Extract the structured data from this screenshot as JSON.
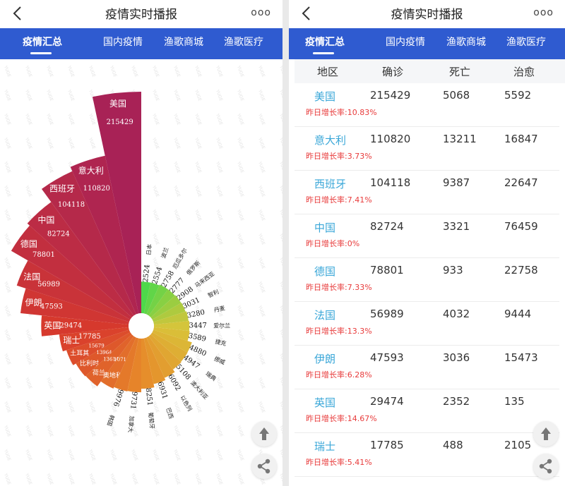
{
  "header": {
    "title": "疫情实时播报",
    "more_icon": "ooo"
  },
  "tabs": [
    {
      "label": "疫情汇总",
      "active": true
    },
    {
      "label": "国内疫情",
      "active": false
    },
    {
      "label": "渔歌商城",
      "active": false
    },
    {
      "label": "渔歌医疗",
      "active": false
    }
  ],
  "table": {
    "headers": [
      "地区",
      "确诊",
      "死亡",
      "治愈"
    ],
    "growth_label": "昨日增长率:",
    "rows": [
      {
        "country": "美国",
        "confirmed": "215429",
        "deaths": "5068",
        "recovered": "5592",
        "growth": "10.83%"
      },
      {
        "country": "意大利",
        "confirmed": "110820",
        "deaths": "13211",
        "recovered": "16847",
        "growth": "3.73%"
      },
      {
        "country": "西班牙",
        "confirmed": "104118",
        "deaths": "9387",
        "recovered": "22647",
        "growth": "7.41%"
      },
      {
        "country": "中国",
        "confirmed": "82724",
        "deaths": "3321",
        "recovered": "76459",
        "growth": "0%"
      },
      {
        "country": "德国",
        "confirmed": "78801",
        "deaths": "933",
        "recovered": "22758",
        "growth": "7.33%"
      },
      {
        "country": "法国",
        "confirmed": "56989",
        "deaths": "4032",
        "recovered": "9444",
        "growth": "13.3%"
      },
      {
        "country": "伊朗",
        "confirmed": "47593",
        "deaths": "3036",
        "recovered": "15473",
        "growth": "6.28%"
      },
      {
        "country": "英国",
        "confirmed": "29474",
        "deaths": "2352",
        "recovered": "135",
        "growth": "14.67%"
      },
      {
        "country": "瑞士",
        "confirmed": "17785",
        "deaths": "488",
        "recovered": "2105",
        "growth": "5.41%"
      }
    ]
  },
  "chart_data": {
    "type": "pie",
    "categories": [
      "美国",
      "意大利",
      "西班牙",
      "中国",
      "德国",
      "法国",
      "伊朗",
      "英国",
      "瑞士",
      "土耳其",
      "比利时",
      "荷兰",
      "奥地利",
      "韩国",
      "加拿大",
      "葡萄牙",
      "巴西",
      "以色列",
      "澳大利亚",
      "瑞典",
      "挪威",
      "捷克",
      "爱尔兰",
      "丹麦",
      "智利",
      "马来西亚",
      "俄罗斯",
      "厄瓜多尔",
      "波兰",
      "日本"
    ],
    "values": [
      215429,
      110820,
      104118,
      82724,
      78801,
      56989,
      47593,
      29474,
      17785,
      15679,
      13964,
      13614,
      10711,
      9976,
      9731,
      8251,
      6931,
      6092,
      5108,
      4947,
      4880,
      3589,
      3447,
      3280,
      3031,
      2908,
      2777,
      2758,
      2554,
      2524
    ],
    "colors": {
      "top": "#a82256",
      "mid": "#d83a2c",
      "orange": "#e78a2a",
      "yellow": "#d9c43a",
      "green": "#4ed84a"
    }
  },
  "fab": {
    "up_icon": "arrow-up-icon",
    "share_icon": "share-icon"
  }
}
